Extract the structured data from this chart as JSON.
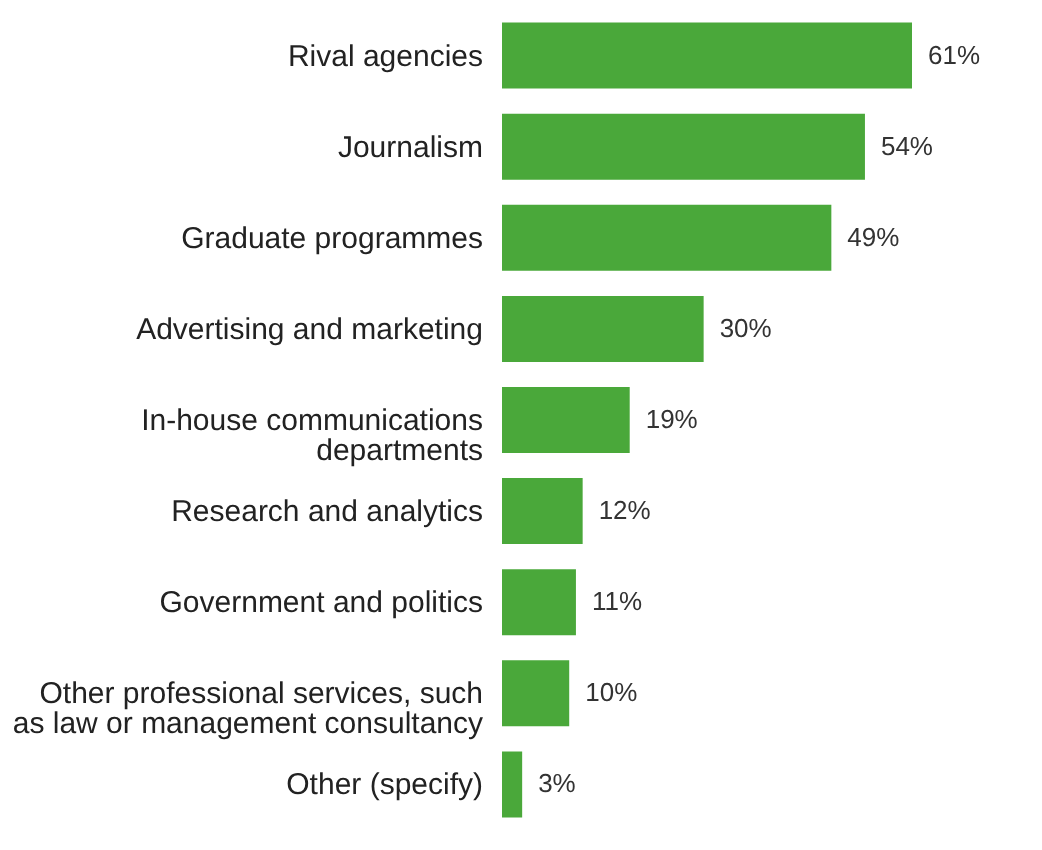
{
  "chart_data": {
    "type": "bar",
    "orientation": "horizontal",
    "categories": [
      "Rival agencies",
      "Journalism",
      "Graduate programmes",
      "Advertising and marketing",
      "In-house communications departments",
      "Research and analytics",
      "Government and politics",
      "Other professional services, such as law or management consultancy",
      "Other (specify)"
    ],
    "values": [
      61,
      54,
      49,
      30,
      19,
      12,
      11,
      10,
      3
    ],
    "value_labels": [
      "61%",
      "54%",
      "49%",
      "30%",
      "19%",
      "12%",
      "11%",
      "10%",
      "3%"
    ],
    "color": "#4aa83a"
  }
}
